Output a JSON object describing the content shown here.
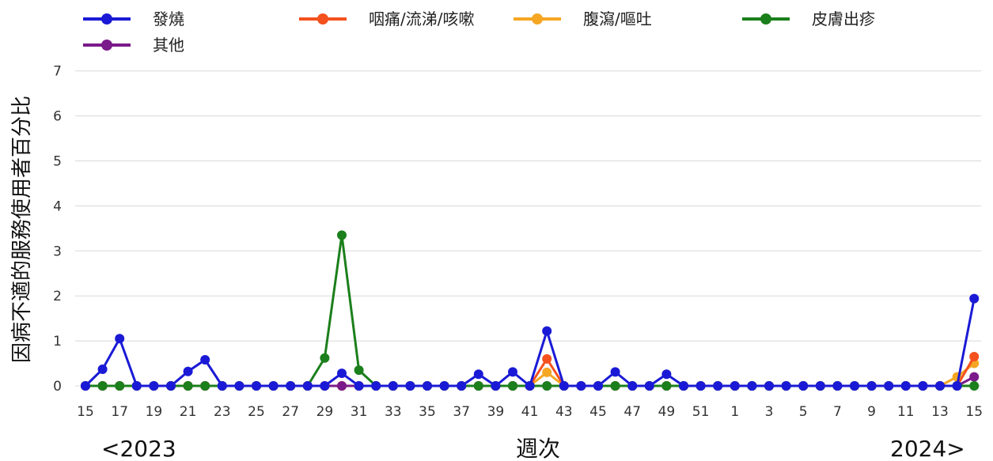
{
  "chart_data": {
    "type": "line",
    "ylabel": "因病不適的服務使用者百分比",
    "xlabel": "週次",
    "year_start_label": "<2023",
    "year_end_label": "2024>",
    "ylim": [
      0,
      7
    ],
    "yticks": [
      0,
      1,
      2,
      3,
      4,
      5,
      6,
      7
    ],
    "grid": true,
    "legend_position": "top",
    "x": [
      15,
      16,
      17,
      18,
      19,
      20,
      21,
      22,
      23,
      24,
      25,
      26,
      27,
      28,
      29,
      30,
      31,
      32,
      33,
      34,
      35,
      36,
      37,
      38,
      39,
      40,
      41,
      42,
      43,
      44,
      45,
      46,
      47,
      48,
      49,
      50,
      51,
      52,
      1,
      2,
      3,
      4,
      5,
      6,
      7,
      8,
      9,
      10,
      11,
      12,
      13,
      14,
      15
    ],
    "xtick_labels": [
      "15",
      "17",
      "19",
      "21",
      "23",
      "25",
      "27",
      "29",
      "31",
      "33",
      "35",
      "37",
      "39",
      "41",
      "43",
      "45",
      "47",
      "49",
      "51",
      "1",
      "3",
      "5",
      "7",
      "9",
      "11",
      "13",
      "15"
    ],
    "series": [
      {
        "name": "腹瀉/嘔吐",
        "color": "#f5a623",
        "values": [
          0,
          0,
          0,
          0,
          0,
          0,
          0,
          0,
          0,
          0,
          0,
          0,
          0,
          0,
          0,
          0,
          0,
          0,
          0,
          0,
          0,
          0,
          0,
          0,
          0,
          0,
          0,
          0.3,
          0,
          0,
          0,
          0,
          0,
          0,
          0,
          0,
          0,
          0,
          0,
          0,
          0,
          0,
          0,
          0,
          0,
          0,
          0,
          0,
          0,
          0,
          0,
          0.2,
          0.5
        ]
      },
      {
        "name": "咽痛/流涕/咳嗽",
        "color": "#f4511e",
        "values": [
          0,
          0,
          0,
          0,
          0,
          0,
          0,
          0,
          0,
          0,
          0,
          0,
          0,
          0,
          0,
          0,
          0,
          0,
          0,
          0,
          0,
          0,
          0,
          0,
          0,
          0,
          0,
          0.6,
          0,
          0,
          0,
          0,
          0,
          0,
          0,
          0,
          0,
          0,
          0,
          0,
          0,
          0,
          0,
          0,
          0,
          0,
          0,
          0,
          0,
          0,
          0,
          0,
          0.65
        ]
      },
      {
        "name": "其他",
        "color": "#7b1a8a",
        "values": [
          0,
          0,
          0,
          0,
          0,
          0,
          0,
          0,
          0,
          0,
          0,
          0,
          0,
          0,
          0,
          0,
          0,
          0,
          0,
          0,
          0,
          0,
          0,
          0,
          0,
          0,
          0,
          0,
          0,
          0,
          0,
          0,
          0,
          0,
          0,
          0,
          0,
          0,
          0,
          0,
          0,
          0,
          0,
          0,
          0,
          0,
          0,
          0,
          0,
          0,
          0,
          0,
          0.2
        ]
      },
      {
        "name": "皮膚出疹",
        "color": "#1b7f1b",
        "values": [
          0,
          0,
          0,
          0,
          0,
          0,
          0,
          0,
          0,
          0,
          0,
          0,
          0,
          0,
          0.62,
          3.35,
          0.35,
          0,
          0,
          0,
          0,
          0,
          0,
          0,
          0,
          0,
          0,
          0,
          0,
          0,
          0,
          0,
          0,
          0,
          0,
          0,
          0,
          0,
          0,
          0,
          0,
          0,
          0,
          0,
          0,
          0,
          0,
          0,
          0,
          0,
          0,
          0,
          0
        ]
      },
      {
        "name": "發燒",
        "color": "#1a1ad6",
        "values": [
          0,
          0.37,
          1.05,
          0,
          0,
          0,
          0.32,
          0.58,
          0,
          0,
          0,
          0,
          0,
          0,
          0,
          0.28,
          0,
          0,
          0,
          0,
          0,
          0,
          0,
          0.26,
          0,
          0.31,
          0,
          1.22,
          0,
          0,
          0,
          0.31,
          0,
          0,
          0.26,
          0,
          0,
          0,
          0,
          0,
          0,
          0,
          0,
          0,
          0,
          0,
          0,
          0,
          0,
          0,
          0,
          0,
          1.94
        ]
      }
    ],
    "legend": [
      {
        "name": "發燒",
        "color": "#1a1ad6"
      },
      {
        "name": "咽痛/流涕/咳嗽",
        "color": "#f4511e"
      },
      {
        "name": "腹瀉/嘔吐",
        "color": "#f5a623"
      },
      {
        "name": "皮膚出疹",
        "color": "#1b7f1b"
      },
      {
        "name": "其他",
        "color": "#7b1a8a"
      }
    ]
  }
}
